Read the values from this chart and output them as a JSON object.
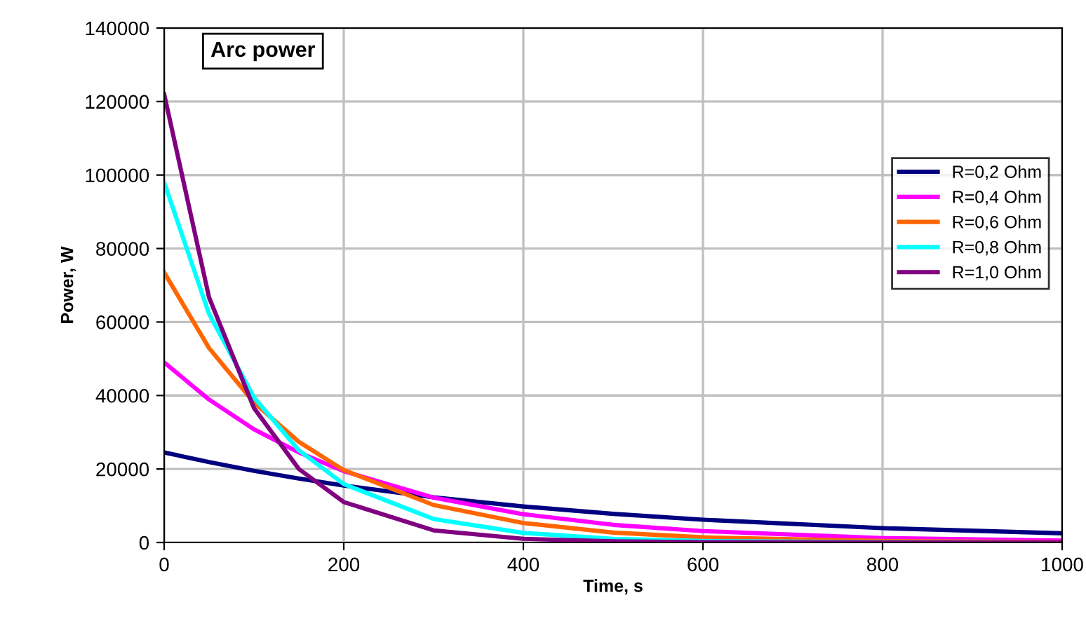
{
  "chart_data": {
    "type": "line",
    "title": "Arc power",
    "xlabel": "Time, s",
    "ylabel": "Power, W",
    "x": [
      0,
      50,
      100,
      150,
      200,
      300,
      400,
      500,
      600,
      800,
      1000
    ],
    "series": [
      {
        "name": "R=0,2 Ohm",
        "color": "#000080",
        "values": [
          24500,
          21900,
          19500,
          17400,
          15500,
          12300,
          9800,
          7800,
          6200,
          3900,
          2500
        ]
      },
      {
        "name": "R=0,4 Ohm",
        "color": "#ff00ff",
        "values": [
          49000,
          38900,
          30800,
          24500,
          19400,
          12200,
          7700,
          4800,
          3100,
          1200,
          500
        ]
      },
      {
        "name": "R=0,6 Ohm",
        "color": "#ff6600",
        "values": [
          73500,
          52900,
          38100,
          27400,
          19700,
          10200,
          5300,
          2700,
          1400,
          400,
          100
        ]
      },
      {
        "name": "R=0,8 Ohm",
        "color": "#00ffff",
        "values": [
          98000,
          62200,
          39500,
          25100,
          15900,
          6400,
          2600,
          1000,
          400,
          100,
          0
        ]
      },
      {
        "name": "R=1,0 Ohm",
        "color": "#800080",
        "values": [
          122000,
          66700,
          36600,
          20000,
          11000,
          3300,
          1000,
          300,
          100,
          0,
          0
        ]
      }
    ],
    "xlim": [
      0,
      1000
    ],
    "xticks": [
      0,
      200,
      400,
      600,
      800,
      1000
    ],
    "ylim": [
      0,
      140000
    ],
    "yticks": [
      0,
      20000,
      40000,
      60000,
      80000,
      100000,
      120000,
      140000
    ],
    "grid": true,
    "legend": "right",
    "marker": "none",
    "line_style": "solid"
  }
}
